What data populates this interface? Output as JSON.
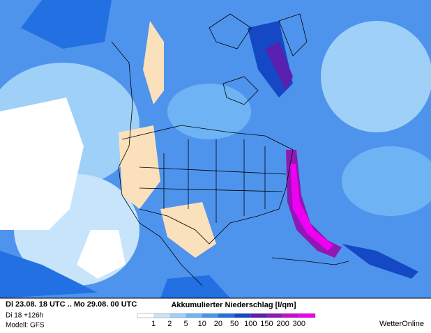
{
  "header": {
    "period": "Di 23.08. 18 UTC .. Mo 29.08. 00 UTC",
    "run": "Di 18 +126h",
    "model": "Modell: GFS"
  },
  "legend": {
    "title": "Akkumulierter Niederschlag [l/qm]",
    "ticks": [
      1,
      2,
      5,
      10,
      20,
      50,
      100,
      150,
      200,
      300
    ],
    "colors": [
      "#ffffff",
      "#c8e4fa",
      "#9fd0f8",
      "#6eb4f4",
      "#4696ee",
      "#2370e2",
      "#1448c4",
      "#5a20b0",
      "#9018b4",
      "#c80cc8",
      "#f000f0"
    ]
  },
  "brand": "WetterOnline"
}
